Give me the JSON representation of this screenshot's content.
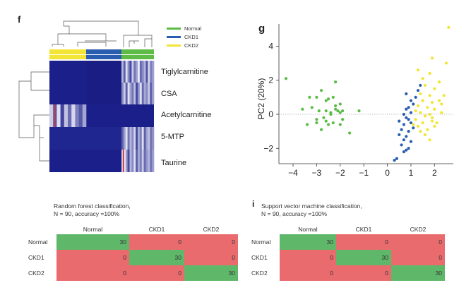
{
  "panels": {
    "f": "f",
    "g": "g",
    "i": "i"
  },
  "heatmap": {
    "legend": [
      {
        "label": "Normal",
        "color": "#5dbb46"
      },
      {
        "label": "CKD1",
        "color": "#2a5db0"
      },
      {
        "label": "CKD2",
        "color": "#f2e535"
      }
    ],
    "rows": [
      "Tiglylcarnitine",
      "CSA",
      "Acetylcarnitine",
      "5-MTP",
      "Taurine"
    ],
    "colors": {
      "low": "#1b1f8a",
      "mid": "#4a55c4",
      "high": "#ffffff"
    }
  },
  "chart_data": [
    {
      "type": "heatmap",
      "rows": [
        "Tiglylcarnitine",
        "CSA",
        "Acetylcarnitine",
        "5-MTP",
        "Taurine"
      ],
      "column_groups": [
        "CKD2",
        "CKD1",
        "Normal"
      ]
    },
    {
      "type": "scatter",
      "ylabel": "PC2 (20%)",
      "xlim": [
        -4.6,
        2.8
      ],
      "ylim": [
        -2.9,
        5.3
      ],
      "xticks": [
        "−4",
        "−3",
        "−2",
        "−1",
        "0",
        "1",
        "2"
      ],
      "yticks": [
        "−2",
        "0",
        "2",
        "4"
      ],
      "series": [
        {
          "name": "Normal",
          "color": "#5dbb46",
          "x": [
            -4.3,
            -3.3,
            -3.0,
            -2.8,
            -2.6,
            -2.5,
            -2.3,
            -2.2,
            -2.0,
            -3.6,
            -3.2,
            -2.9,
            -2.6,
            -2.4,
            -2.2,
            -2.0,
            -1.9,
            -3.0,
            -2.7,
            -2.4,
            -2.1,
            -1.9,
            -3.4,
            -3.0,
            -2.6,
            -2.3,
            -2.0,
            -1.6,
            -2.8,
            -2.5,
            -1.2,
            -2.2
          ],
          "y": [
            2.1,
            1.0,
            1.0,
            1.4,
            0.8,
            0.9,
            1.0,
            0.5,
            0.6,
            0.3,
            0.4,
            0.2,
            0.2,
            0.1,
            0.3,
            0.1,
            0.2,
            -0.3,
            -0.2,
            0.0,
            0.2,
            -0.3,
            -0.6,
            -0.5,
            -0.4,
            -0.5,
            -0.6,
            -1.1,
            -0.9,
            -0.6,
            0.2,
            1.9
          ]
        },
        {
          "name": "CKD1",
          "color": "#2a5db0",
          "x": [
            1.4,
            1.3,
            1.2,
            1.0,
            0.8,
            1.1,
            0.9,
            1.0,
            0.7,
            0.8,
            0.9,
            1.0,
            0.7,
            1.1,
            0.6,
            0.9,
            0.5,
            0.8,
            0.7,
            1.0,
            0.6,
            0.9,
            0.8,
            0.7,
            0.5,
            0.4,
            0.3,
            0.8
          ],
          "y": [
            1.7,
            1.4,
            1.0,
            0.8,
            1.2,
            0.6,
            0.4,
            0.1,
            0.0,
            -0.2,
            -0.3,
            -0.5,
            -0.6,
            -0.8,
            -0.9,
            -1.0,
            -1.2,
            -1.3,
            -1.5,
            -1.6,
            -1.8,
            -2.0,
            -2.1,
            -2.2,
            -0.4,
            -2.6,
            -2.7,
            0.3
          ]
        },
        {
          "name": "CKD2",
          "color": "#f2e535",
          "x": [
            2.6,
            1.9,
            2.5,
            1.3,
            1.8,
            2.2,
            1.6,
            2.0,
            1.4,
            1.8,
            2.4,
            1.5,
            1.9,
            2.2,
            1.3,
            1.7,
            2.0,
            1.4,
            1.8,
            2.3,
            1.6,
            1.2,
            1.9,
            1.5,
            2.1,
            1.3,
            1.7,
            2.0,
            1.6,
            1.4,
            1.8,
            1.2,
            2.3,
            1.5,
            1.9,
            1.1
          ],
          "y": [
            5.1,
            3.3,
            3.0,
            2.6,
            2.4,
            1.9,
            1.7,
            1.5,
            1.2,
            1.1,
            1.1,
            0.8,
            0.7,
            0.8,
            0.5,
            0.4,
            0.3,
            0.1,
            0.0,
            0.1,
            -0.1,
            -0.3,
            -0.4,
            -0.5,
            -0.5,
            -0.7,
            -0.9,
            -0.7,
            -1.2,
            -1.0,
            -1.5,
            0.2,
            0.6,
            2.1,
            -0.2,
            -0.6
          ]
        }
      ]
    },
    {
      "type": "table",
      "title_lines": [
        "Random forest classification,",
        "N = 90, accuracy =100%"
      ],
      "columns": [
        "Normal",
        "CKD1",
        "CKD2"
      ],
      "rows": [
        {
          "label": "Normal",
          "values": [
            30,
            0,
            0
          ]
        },
        {
          "label": "CKD1",
          "values": [
            0,
            30,
            0
          ]
        },
        {
          "label": "CKD2",
          "values": [
            0,
            0,
            30
          ]
        }
      ]
    },
    {
      "type": "table",
      "title_lines": [
        "Support vector machine classification,",
        "N = 90, accuracy =100%"
      ],
      "columns": [
        "Normal",
        "CKD1",
        "CKD2"
      ],
      "rows": [
        {
          "label": "Normal",
          "values": [
            30,
            0,
            0
          ]
        },
        {
          "label": "CKD1",
          "values": [
            0,
            30,
            0
          ]
        },
        {
          "label": "CKD2",
          "values": [
            0,
            0,
            30
          ]
        }
      ]
    }
  ]
}
